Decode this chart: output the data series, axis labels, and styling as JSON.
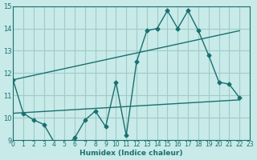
{
  "xlabel": "Humidex (Indice chaleur)",
  "xlim": [
    0,
    23
  ],
  "ylim": [
    9,
    15
  ],
  "yticks": [
    9,
    10,
    11,
    12,
    13,
    14,
    15
  ],
  "xticks": [
    0,
    1,
    2,
    3,
    4,
    5,
    6,
    7,
    8,
    9,
    10,
    11,
    12,
    13,
    14,
    15,
    16,
    17,
    18,
    19,
    20,
    21,
    22,
    23
  ],
  "bg_color": "#c8eae8",
  "grid_color": "#a0ccc8",
  "line_color": "#1a7070",
  "line1_x": [
    0,
    1,
    2,
    3,
    4,
    5,
    6,
    7,
    8,
    9,
    10,
    11,
    12,
    13,
    14,
    15,
    16,
    17,
    18,
    19,
    20,
    21,
    22
  ],
  "line1_y": [
    11.7,
    10.2,
    9.9,
    9.7,
    8.9,
    8.7,
    9.1,
    9.9,
    10.3,
    9.6,
    11.6,
    9.2,
    12.5,
    13.9,
    14.0,
    14.8,
    14.0,
    14.8,
    13.9,
    12.8,
    11.6,
    11.5,
    10.9
  ],
  "line2_x": [
    0,
    22
  ],
  "line2_y": [
    10.2,
    10.8
  ],
  "line3_x": [
    0,
    22
  ],
  "line3_y": [
    11.7,
    13.9
  ]
}
